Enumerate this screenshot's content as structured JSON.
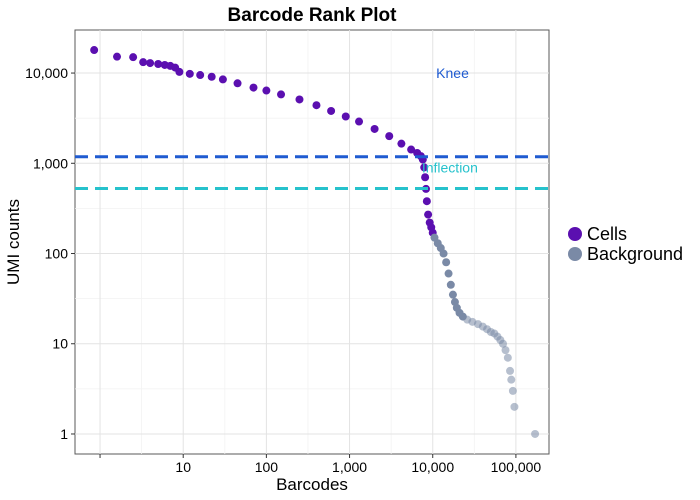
{
  "chart_data": {
    "type": "scatter",
    "title": "Barcode Rank Plot",
    "xlabel": "Barcodes",
    "ylabel": "UMI counts",
    "xscale": "log",
    "yscale": "log",
    "xlim": [
      0.5,
      250000
    ],
    "ylim": [
      0.6,
      30000
    ],
    "grid": true,
    "legend_position": "right",
    "x_ticks": [
      {
        "value": 1,
        "label": ""
      },
      {
        "value": 10,
        "label": "10"
      },
      {
        "value": 100,
        "label": "100"
      },
      {
        "value": 1000,
        "label": "1,000"
      },
      {
        "value": 10000,
        "label": "10,000"
      },
      {
        "value": 100000,
        "label": "100,000"
      }
    ],
    "y_ticks": [
      {
        "value": 1,
        "label": "1"
      },
      {
        "value": 10,
        "label": "10"
      },
      {
        "value": 100,
        "label": "100"
      },
      {
        "value": 1000,
        "label": "1,000"
      },
      {
        "value": 10000,
        "label": "10,000"
      }
    ],
    "thresholds": [
      {
        "name": "Knee",
        "value": 1180,
        "color": "#1f5bd1",
        "label_x": 11000,
        "label_y": 10000
      },
      {
        "name": "Inflection",
        "value": 525,
        "color": "#26c2cc",
        "label_x": 7400,
        "label_y": 900
      }
    ],
    "series": [
      {
        "name": "Cells",
        "color": "#5b0fb0",
        "points": [
          [
            0.85,
            18000
          ],
          [
            1.6,
            15200
          ],
          [
            2.5,
            15000
          ],
          [
            3.3,
            13200
          ],
          [
            4,
            12900
          ],
          [
            5,
            12600
          ],
          [
            6,
            12300
          ],
          [
            7,
            12000
          ],
          [
            8,
            11500
          ],
          [
            9,
            10300
          ],
          [
            12,
            9800
          ],
          [
            16,
            9500
          ],
          [
            22,
            9100
          ],
          [
            30,
            8500
          ],
          [
            45,
            7700
          ],
          [
            70,
            6900
          ],
          [
            100,
            6400
          ],
          [
            150,
            5800
          ],
          [
            250,
            5100
          ],
          [
            400,
            4400
          ],
          [
            600,
            3800
          ],
          [
            900,
            3300
          ],
          [
            1300,
            2900
          ],
          [
            2000,
            2400
          ],
          [
            3000,
            2000
          ],
          [
            4200,
            1650
          ],
          [
            5500,
            1420
          ],
          [
            6500,
            1300
          ],
          [
            7200,
            1200
          ],
          [
            7600,
            1100
          ],
          [
            7900,
            900
          ],
          [
            8100,
            700
          ],
          [
            8300,
            520
          ],
          [
            8500,
            380
          ],
          [
            8800,
            270
          ],
          [
            9200,
            220
          ],
          [
            9600,
            195
          ],
          [
            10000,
            170
          ]
        ]
      },
      {
        "name": "Background",
        "color": "#7a8aa6",
        "points": [
          [
            10500,
            150
          ],
          [
            11500,
            130
          ],
          [
            12500,
            115
          ],
          [
            13500,
            100
          ],
          [
            14500,
            80
          ],
          [
            15500,
            60
          ],
          [
            16500,
            45
          ],
          [
            17500,
            35
          ],
          [
            18500,
            29
          ],
          [
            19500,
            25
          ],
          [
            21000,
            22
          ],
          [
            23000,
            20
          ],
          [
            26000,
            18.5
          ],
          [
            30000,
            17.5
          ],
          [
            35000,
            16.5
          ],
          [
            40000,
            15.5
          ],
          [
            45000,
            14.5
          ],
          [
            50000,
            13.5
          ],
          [
            55000,
            13
          ],
          [
            60000,
            12
          ],
          [
            65000,
            11
          ],
          [
            70000,
            10
          ],
          [
            75000,
            8.5
          ],
          [
            80000,
            7
          ],
          [
            85000,
            5
          ],
          [
            88000,
            4
          ],
          [
            92000,
            3
          ],
          [
            96000,
            2
          ],
          [
            170000,
            1
          ]
        ]
      }
    ]
  }
}
